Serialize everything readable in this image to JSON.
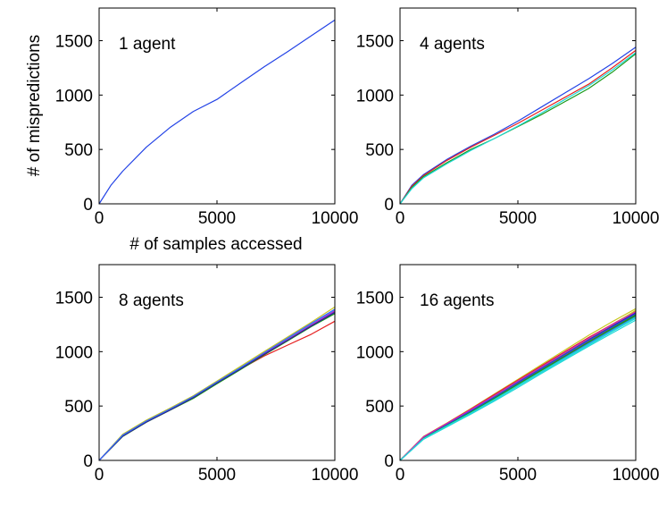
{
  "figure": {
    "ylabel": "# of mispredictions",
    "xlabel": "# of samples accessed"
  },
  "chart_data": [
    {
      "type": "line",
      "annotation": "1 agent",
      "xlim": [
        0,
        10000
      ],
      "ylim": [
        0,
        1800
      ],
      "xticks": [
        0,
        5000,
        10000
      ],
      "yticks": [
        0,
        500,
        1000,
        1500
      ],
      "series_colors": [
        "#2343e6"
      ],
      "series": [
        {
          "x": [
            0,
            500,
            1000,
            2000,
            3000,
            4000,
            5000,
            6000,
            7000,
            8000,
            9000,
            10000
          ],
          "values": [
            0,
            170,
            300,
            520,
            700,
            850,
            960,
            1110,
            1260,
            1400,
            1545,
            1690
          ]
        }
      ]
    },
    {
      "type": "line",
      "annotation": "4 agents",
      "xlim": [
        0,
        10000
      ],
      "ylim": [
        0,
        1800
      ],
      "xticks": [
        0,
        5000,
        10000
      ],
      "yticks": [
        0,
        500,
        1000,
        1500
      ],
      "series_colors": [
        "#2343e6",
        "#e62020",
        "#1a9a1a",
        "#20d8d8"
      ],
      "series": [
        {
          "x": [
            0,
            500,
            1000,
            2000,
            3000,
            4000,
            5000,
            6000,
            7000,
            8000,
            9000,
            10000
          ],
          "values": [
            0,
            170,
            270,
            410,
            530,
            640,
            760,
            890,
            1020,
            1150,
            1290,
            1440
          ]
        },
        {
          "x": [
            0,
            500,
            1000,
            2000,
            3000,
            4000,
            5000,
            6000,
            7000,
            8000,
            9000,
            10000
          ],
          "values": [
            0,
            160,
            260,
            400,
            520,
            630,
            740,
            860,
            980,
            1100,
            1250,
            1410
          ]
        },
        {
          "x": [
            0,
            500,
            1000,
            2000,
            3000,
            4000,
            5000,
            6000,
            7000,
            8000,
            9000,
            10000
          ],
          "values": [
            0,
            150,
            250,
            380,
            500,
            600,
            710,
            820,
            940,
            1060,
            1210,
            1380
          ]
        },
        {
          "x": [
            0,
            500,
            1000,
            2000,
            3000,
            4000,
            5000,
            6000,
            7000,
            8000,
            9000,
            10000
          ],
          "values": [
            0,
            140,
            240,
            370,
            490,
            600,
            715,
            835,
            960,
            1085,
            1230,
            1390
          ]
        }
      ]
    },
    {
      "type": "line",
      "annotation": "8 agents",
      "xlim": [
        0,
        10000
      ],
      "ylim": [
        0,
        1800
      ],
      "xticks": [
        0,
        5000,
        10000
      ],
      "yticks": [
        0,
        500,
        1000,
        1500
      ],
      "series_colors": [
        "#2343e6",
        "#e62020",
        "#1a9a1a",
        "#20d8d8",
        "#c8c820",
        "#c820c8",
        "#2a2a8a",
        "#3366ff"
      ],
      "series": [
        {
          "x": [
            0,
            1000,
            2000,
            3000,
            4000,
            5000,
            6000,
            7000,
            8000,
            9000,
            10000
          ],
          "values": [
            0,
            230,
            360,
            470,
            580,
            720,
            850,
            990,
            1120,
            1240,
            1370
          ]
        },
        {
          "x": [
            0,
            1000,
            2000,
            3000,
            4000,
            5000,
            6000,
            7000,
            8000,
            9000,
            10000
          ],
          "values": [
            0,
            225,
            355,
            465,
            575,
            710,
            840,
            960,
            1060,
            1160,
            1280
          ]
        },
        {
          "x": [
            0,
            1000,
            2000,
            3000,
            4000,
            5000,
            6000,
            7000,
            8000,
            9000,
            10000
          ],
          "values": [
            0,
            220,
            350,
            460,
            570,
            705,
            835,
            970,
            1100,
            1230,
            1350
          ]
        },
        {
          "x": [
            0,
            1000,
            2000,
            3000,
            4000,
            5000,
            6000,
            7000,
            8000,
            9000,
            10000
          ],
          "values": [
            0,
            235,
            365,
            475,
            590,
            725,
            855,
            985,
            1115,
            1250,
            1380
          ]
        },
        {
          "x": [
            0,
            1000,
            2000,
            3000,
            4000,
            5000,
            6000,
            7000,
            8000,
            9000,
            10000
          ],
          "values": [
            0,
            240,
            370,
            480,
            595,
            730,
            865,
            1000,
            1135,
            1270,
            1410
          ]
        },
        {
          "x": [
            0,
            1000,
            2000,
            3000,
            4000,
            5000,
            6000,
            7000,
            8000,
            9000,
            10000
          ],
          "values": [
            0,
            228,
            358,
            468,
            582,
            715,
            848,
            980,
            1110,
            1245,
            1375
          ]
        },
        {
          "x": [
            0,
            1000,
            2000,
            3000,
            4000,
            5000,
            6000,
            7000,
            8000,
            9000,
            10000
          ],
          "values": [
            0,
            222,
            352,
            462,
            578,
            712,
            842,
            975,
            1105,
            1235,
            1360
          ]
        },
        {
          "x": [
            0,
            1000,
            2000,
            3000,
            4000,
            5000,
            6000,
            7000,
            8000,
            9000,
            10000
          ],
          "values": [
            0,
            232,
            362,
            472,
            588,
            722,
            852,
            990,
            1125,
            1260,
            1390
          ]
        }
      ]
    },
    {
      "type": "line",
      "annotation": "16 agents",
      "xlim": [
        0,
        10000
      ],
      "ylim": [
        0,
        1800
      ],
      "xticks": [
        0,
        5000,
        10000
      ],
      "yticks": [
        0,
        500,
        1000,
        1500
      ],
      "series_colors": [
        "#2343e6",
        "#e62020",
        "#1a9a1a",
        "#20d8d8",
        "#c8c820",
        "#c820c8",
        "#2a2a8a",
        "#3366ff",
        "#e62020",
        "#1a9a1a",
        "#20d8d8",
        "#c8c820",
        "#2343e6",
        "#1a9a1a",
        "#c820c8",
        "#20d8d8"
      ],
      "series": [
        {
          "x": [
            0,
            1000,
            2000,
            3000,
            4000,
            5000,
            6000,
            7000,
            8000,
            9000,
            10000
          ],
          "values": [
            0,
            210,
            330,
            450,
            580,
            710,
            840,
            970,
            1100,
            1230,
            1360
          ]
        },
        {
          "x": [
            0,
            1000,
            2000,
            3000,
            4000,
            5000,
            6000,
            7000,
            8000,
            9000,
            10000
          ],
          "values": [
            0,
            215,
            340,
            470,
            600,
            740,
            870,
            1000,
            1130,
            1250,
            1370
          ]
        },
        {
          "x": [
            0,
            1000,
            2000,
            3000,
            4000,
            5000,
            6000,
            7000,
            8000,
            9000,
            10000
          ],
          "values": [
            0,
            205,
            325,
            445,
            570,
            700,
            830,
            955,
            1085,
            1210,
            1330
          ]
        },
        {
          "x": [
            0,
            1000,
            2000,
            3000,
            4000,
            5000,
            6000,
            7000,
            8000,
            9000,
            10000
          ],
          "values": [
            0,
            195,
            310,
            425,
            545,
            670,
            800,
            925,
            1050,
            1170,
            1290
          ]
        },
        {
          "x": [
            0,
            1000,
            2000,
            3000,
            4000,
            5000,
            6000,
            7000,
            8000,
            9000,
            10000
          ],
          "values": [
            0,
            220,
            345,
            475,
            610,
            745,
            880,
            1015,
            1150,
            1275,
            1395
          ]
        },
        {
          "x": [
            0,
            1000,
            2000,
            3000,
            4000,
            5000,
            6000,
            7000,
            8000,
            9000,
            10000
          ],
          "values": [
            0,
            208,
            328,
            448,
            575,
            705,
            835,
            965,
            1095,
            1220,
            1345
          ]
        },
        {
          "x": [
            0,
            1000,
            2000,
            3000,
            4000,
            5000,
            6000,
            7000,
            8000,
            9000,
            10000
          ],
          "values": [
            0,
            212,
            335,
            458,
            588,
            720,
            850,
            980,
            1110,
            1235,
            1355
          ]
        },
        {
          "x": [
            0,
            1000,
            2000,
            3000,
            4000,
            5000,
            6000,
            7000,
            8000,
            9000,
            10000
          ],
          "values": [
            0,
            202,
            320,
            440,
            565,
            695,
            825,
            950,
            1075,
            1200,
            1320
          ]
        },
        {
          "x": [
            0,
            1000,
            2000,
            3000,
            4000,
            5000,
            6000,
            7000,
            8000,
            9000,
            10000
          ],
          "values": [
            0,
            218,
            342,
            472,
            605,
            738,
            868,
            998,
            1125,
            1250,
            1375
          ]
        },
        {
          "x": [
            0,
            1000,
            2000,
            3000,
            4000,
            5000,
            6000,
            7000,
            8000,
            9000,
            10000
          ],
          "values": [
            0,
            206,
            326,
            446,
            572,
            702,
            832,
            960,
            1090,
            1215,
            1340
          ]
        },
        {
          "x": [
            0,
            1000,
            2000,
            3000,
            4000,
            5000,
            6000,
            7000,
            8000,
            9000,
            10000
          ],
          "values": [
            0,
            198,
            315,
            432,
            555,
            682,
            810,
            935,
            1060,
            1185,
            1305
          ]
        },
        {
          "x": [
            0,
            1000,
            2000,
            3000,
            4000,
            5000,
            6000,
            7000,
            8000,
            9000,
            10000
          ],
          "values": [
            0,
            214,
            338,
            462,
            592,
            728,
            858,
            990,
            1120,
            1245,
            1380
          ]
        },
        {
          "x": [
            0,
            1000,
            2000,
            3000,
            4000,
            5000,
            6000,
            7000,
            8000,
            9000,
            10000
          ],
          "values": [
            0,
            210,
            332,
            455,
            582,
            715,
            845,
            975,
            1105,
            1228,
            1350
          ]
        },
        {
          "x": [
            0,
            1000,
            2000,
            3000,
            4000,
            5000,
            6000,
            7000,
            8000,
            9000,
            10000
          ],
          "values": [
            0,
            204,
            322,
            442,
            568,
            698,
            828,
            958,
            1088,
            1212,
            1335
          ]
        },
        {
          "x": [
            0,
            1000,
            2000,
            3000,
            4000,
            5000,
            6000,
            7000,
            8000,
            9000,
            10000
          ],
          "values": [
            0,
            216,
            340,
            466,
            596,
            730,
            860,
            992,
            1122,
            1248,
            1365
          ]
        },
        {
          "x": [
            0,
            1000,
            2000,
            3000,
            4000,
            5000,
            6000,
            7000,
            8000,
            9000,
            10000
          ],
          "values": [
            0,
            200,
            318,
            436,
            560,
            688,
            816,
            942,
            1068,
            1192,
            1315
          ]
        }
      ]
    }
  ]
}
